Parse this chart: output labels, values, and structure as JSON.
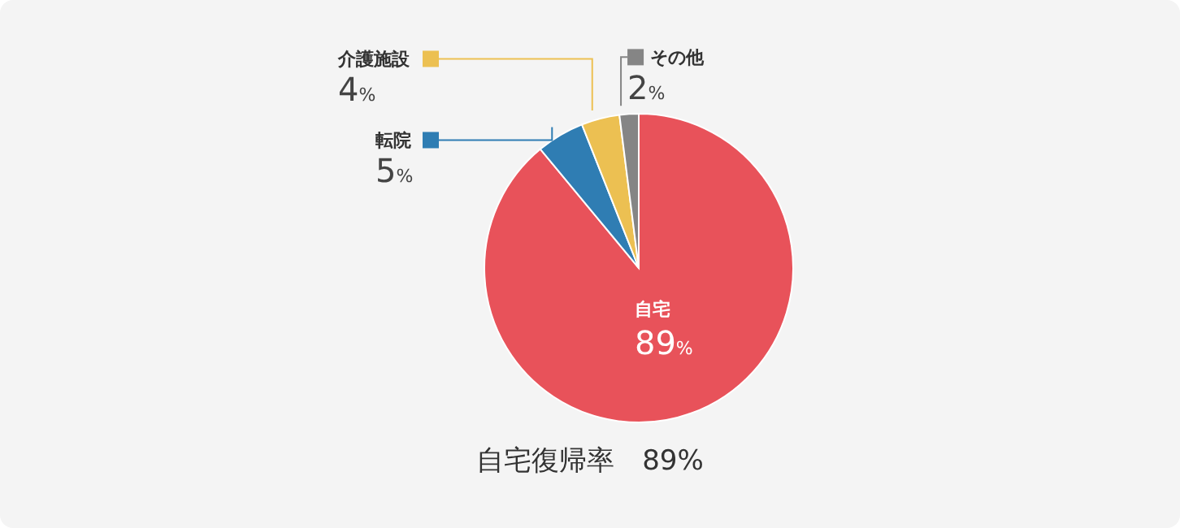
{
  "chart_data": {
    "type": "pie",
    "categories": [
      "自宅",
      "転院",
      "介護施設",
      "その他"
    ],
    "values": [
      89,
      5,
      4,
      2
    ],
    "colors": [
      "#e8525a",
      "#2f7db3",
      "#ecc052",
      "#858585"
    ],
    "data_labels": true,
    "legend": "top left",
    "value_labels": [
      "89%",
      "5%",
      "4%",
      "2%"
    ],
    "annotations": [
      "自宅復帰率　89%"
    ]
  }
}
